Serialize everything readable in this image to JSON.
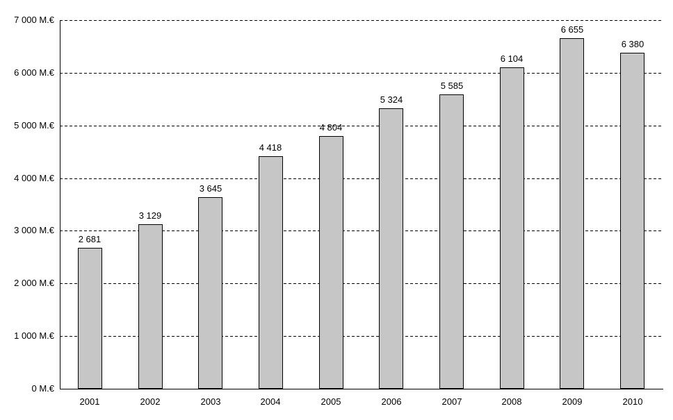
{
  "chart_data": {
    "type": "bar",
    "title": "",
    "categories": [
      "2001",
      "2002",
      "2003",
      "2004",
      "2005",
      "2006",
      "2007",
      "2008",
      "2009",
      "2010"
    ],
    "values": [
      2681,
      3129,
      3645,
      4418,
      4804,
      5324,
      5585,
      6104,
      6655,
      6380
    ],
    "value_labels": [
      "2 681",
      "3 129",
      "3 645",
      "4 418",
      "4 804",
      "5 324",
      "5 585",
      "6 104",
      "6 655",
      "6 380"
    ],
    "xlabel": "",
    "ylabel": "",
    "y_axis": {
      "unit": "M.€",
      "ylim": [
        0,
        7000
      ],
      "tick_step": 1000,
      "tick_labels": [
        "0 M.€",
        "1 000 M.€",
        "2 000 M.€",
        "3 000 M.€",
        "4 000 M.€",
        "5 000 M.€",
        "6 000 M.€",
        "7 000 M.€"
      ]
    },
    "grid": "horizontal-dashed",
    "legend": "none",
    "colors": {
      "bar_fill": "#c6c6c6",
      "bar_border": "#000000",
      "axis": "#000000",
      "gridline": "#000000",
      "text": "#000000",
      "background": "#ffffff"
    }
  }
}
